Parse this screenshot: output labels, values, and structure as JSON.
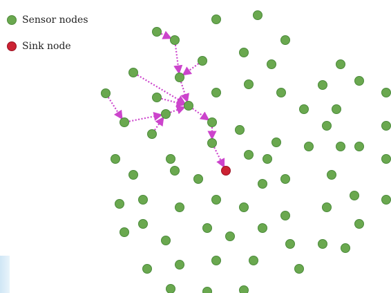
{
  "legend": {
    "sensor_label": "Sensor nodes",
    "sink_label": "Sink node"
  },
  "colors": {
    "sensor": "#6aa84f",
    "sensor_stroke": "#4a8a3a",
    "sink": "#cc2233",
    "link": "#cc44cc"
  }
}
